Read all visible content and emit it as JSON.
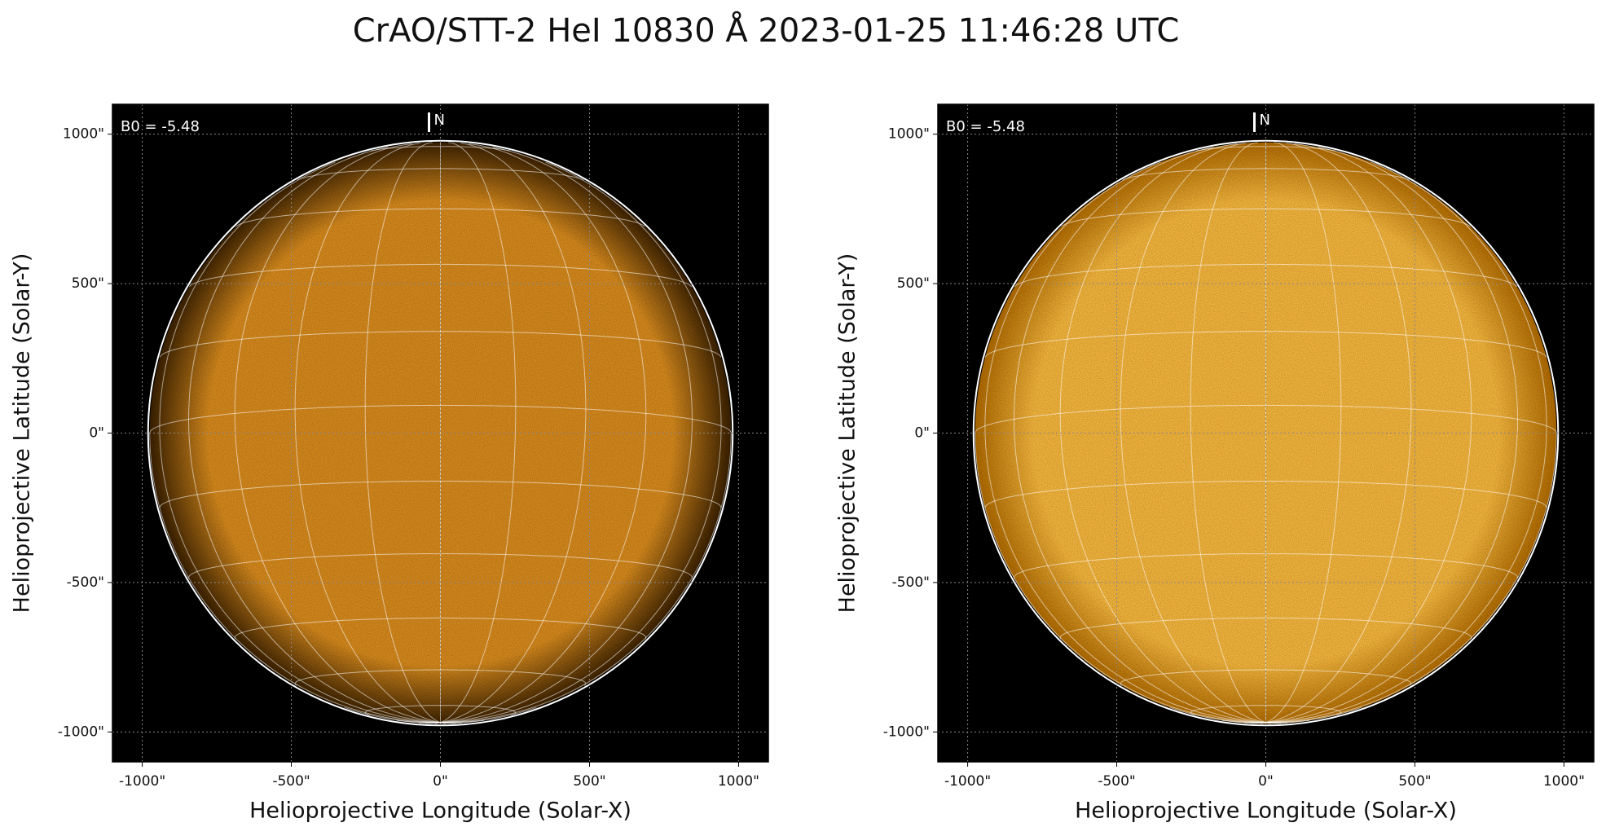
{
  "title": "CrAO/STT-2 HeI 10830 Å 2023-01-25 11:46:28 UTC",
  "chart_data": [
    {
      "type": "image",
      "xlabel": "Helioprojective Longitude (Solar-X)",
      "ylabel": "Helioprojective Latitude (Solar-Y)",
      "xlim": [
        -1100,
        1100
      ],
      "ylim": [
        -1100,
        1100
      ],
      "xticks": [
        {
          "value": -1000,
          "label": "-1000\""
        },
        {
          "value": -500,
          "label": "-500\""
        },
        {
          "value": 0,
          "label": "0\""
        },
        {
          "value": 500,
          "label": "500\""
        },
        {
          "value": 1000,
          "label": "1000\""
        }
      ],
      "yticks": [
        {
          "value": -1000,
          "label": "-1000\""
        },
        {
          "value": -500,
          "label": "-500\""
        },
        {
          "value": 0,
          "label": "0\""
        },
        {
          "value": 500,
          "label": "500\""
        },
        {
          "value": 1000,
          "label": "1000\""
        }
      ],
      "b0": {
        "value": -5.48,
        "label": "B0 = -5.48"
      },
      "north_label": "N",
      "disk_radius": 975,
      "graticule_step": 15,
      "grid": true,
      "color": "#d4881c",
      "limb_color": "#3a2000"
    },
    {
      "type": "image",
      "xlabel": "Helioprojective Longitude (Solar-X)",
      "ylabel": "Helioprojective Latitude (Solar-Y)",
      "xlim": [
        -1100,
        1100
      ],
      "ylim": [
        -1100,
        1100
      ],
      "xticks": [
        {
          "value": -1000,
          "label": "-1000\""
        },
        {
          "value": -500,
          "label": "-500\""
        },
        {
          "value": 0,
          "label": "0\""
        },
        {
          "value": 500,
          "label": "500\""
        },
        {
          "value": 1000,
          "label": "1000\""
        }
      ],
      "yticks": [
        {
          "value": -1000,
          "label": "-1000\""
        },
        {
          "value": -500,
          "label": "-500\""
        },
        {
          "value": 0,
          "label": "0\""
        },
        {
          "value": 500,
          "label": "500\""
        },
        {
          "value": 1000,
          "label": "1000\""
        }
      ],
      "b0": {
        "value": -5.48,
        "label": "B0 = -5.48"
      },
      "north_label": "N",
      "disk_radius": 975,
      "graticule_step": 15,
      "grid": true,
      "color": "#f2b43c",
      "limb_color": "#b06a00"
    }
  ]
}
